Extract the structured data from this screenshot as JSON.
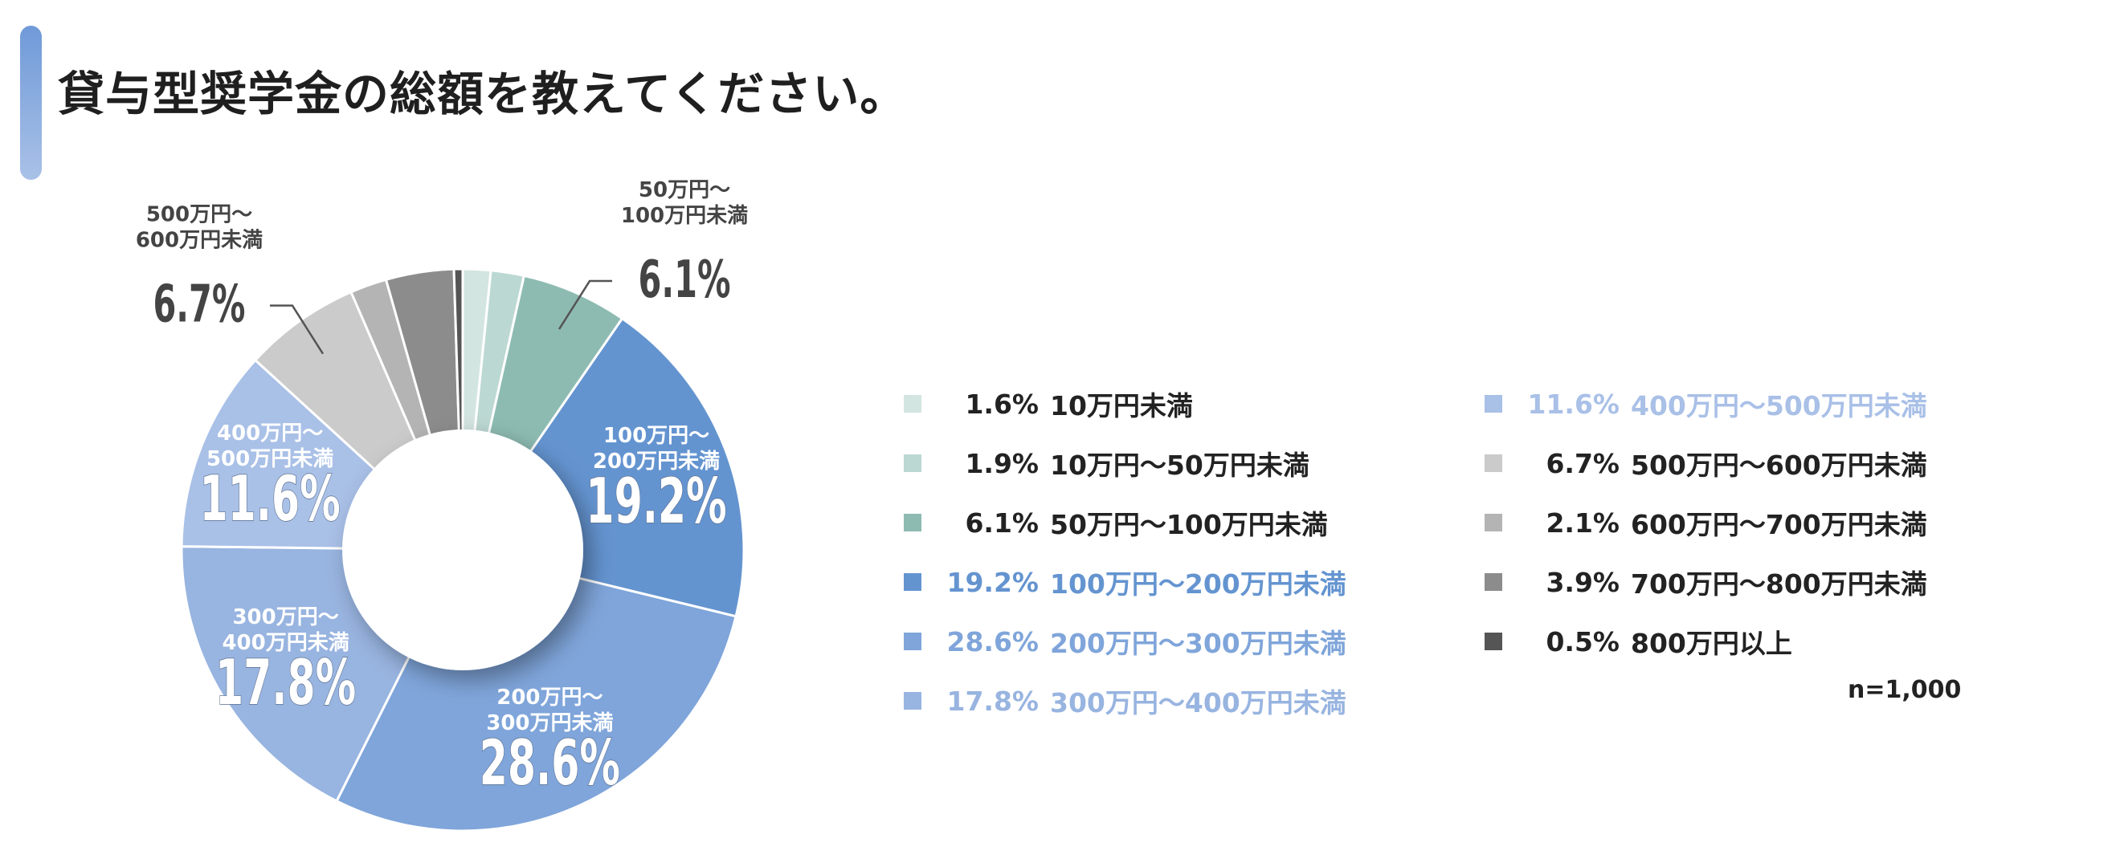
{
  "title": "貸与型奨学金の総額を教えてください。",
  "sample_size": "n=1,000",
  "chart_data": {
    "type": "donut",
    "unit": "%",
    "categories": [
      "10万円未満",
      "10万円～50万円未満",
      "50万円～100万円未満",
      "100万円～200万円未満",
      "200万円～300万円未満",
      "300万円～400万円未満",
      "400万円～500万円未満",
      "500万円～600万円未満",
      "600万円～700万円未満",
      "700万円～800万円未満",
      "800万円以上"
    ],
    "values": [
      1.6,
      1.9,
      6.1,
      19.2,
      28.6,
      17.8,
      11.6,
      6.7,
      2.1,
      3.9,
      0.5
    ],
    "value_labels": [
      "1.6%",
      "1.9%",
      "6.1%",
      "19.2%",
      "28.6%",
      "17.8%",
      "11.6%",
      "6.7%",
      "2.1%",
      "3.9%",
      "0.5%"
    ],
    "colors": [
      "#d3e5e1",
      "#bcd8d2",
      "#8dbbb2",
      "#6494d0",
      "#7fa5da",
      "#98b4e0",
      "#a9c0e7",
      "#cbcbcb",
      "#b4b4b4",
      "#8c8c8c",
      "#555555"
    ],
    "legend_text_colors": [
      "#222222",
      "#222222",
      "#222222",
      "#6494d0",
      "#7fa5da",
      "#98b4e0",
      "#a9c0e7",
      "#222222",
      "#222222",
      "#222222",
      "#222222"
    ],
    "legend_placement": "right, two columns",
    "slice_labels": [
      {
        "index": 2,
        "line1": "50万円～",
        "line2": "100万円未満",
        "value": "6.1%",
        "placement": "outside"
      },
      {
        "index": 3,
        "line1": "100万円～",
        "line2": "200万円未満",
        "value": "19.2%",
        "placement": "inside"
      },
      {
        "index": 4,
        "line1": "200万円～",
        "line2": "300万円未満",
        "value": "28.6%",
        "placement": "inside"
      },
      {
        "index": 5,
        "line1": "300万円～",
        "line2": "400万円未満",
        "value": "17.8%",
        "placement": "inside"
      },
      {
        "index": 6,
        "line1": "400万円～",
        "line2": "500万円未満",
        "value": "11.6%",
        "placement": "inside"
      },
      {
        "index": 7,
        "line1": "500万円～",
        "line2": "600万円未満",
        "value": "6.7%",
        "placement": "outside"
      }
    ]
  }
}
